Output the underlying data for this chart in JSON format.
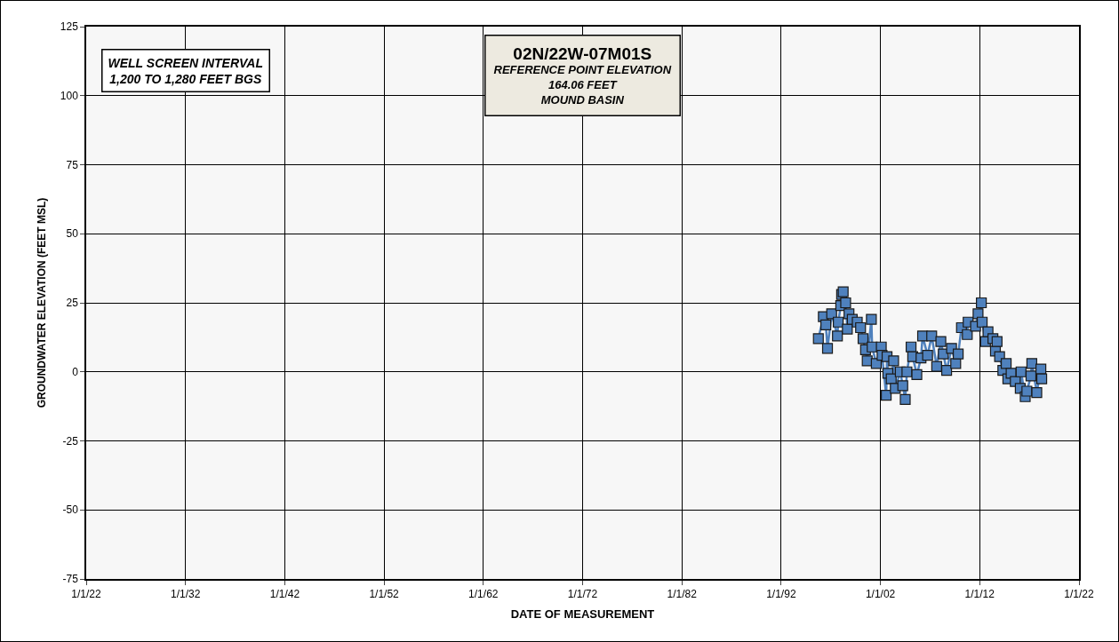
{
  "chart_data": {
    "type": "line",
    "title": "02N/22W-07M01S",
    "subtitle": "REFERENCE POINT ELEVATION\n164.06 FEET\nMOUND BASIN",
    "xlabel": "DATE OF MEASUREMENT",
    "ylabel": "GROUNDWATER ELEVATION (FEET MSL)",
    "annotations": [
      "WELL SCREEN INTERVAL\n1,200 TO 1,280 FEET BGS"
    ],
    "x": [
      "1995-10",
      "1996-04",
      "1996-07",
      "1996-09",
      "1997-02",
      "1997-09",
      "1997-10",
      "1998-01",
      "1998-02",
      "1998-04",
      "1998-07",
      "1998-09",
      "1998-11",
      "1999-03",
      "1999-09",
      "2000-01",
      "2000-04",
      "2000-07",
      "2000-09",
      "2001-02",
      "2001-03",
      "2001-08",
      "2002-02",
      "2002-03",
      "2002-08",
      "2002-09",
      "2002-10",
      "2003-02",
      "2003-05",
      "2003-07",
      "2004-01",
      "2004-04",
      "2004-07",
      "2004-09",
      "2005-02",
      "2005-04",
      "2005-09",
      "2006-02",
      "2006-04",
      "2006-10",
      "2007-03",
      "2007-09",
      "2008-02",
      "2008-05",
      "2008-09",
      "2009-03",
      "2009-08",
      "2009-11",
      "2010-03",
      "2010-10",
      "2010-11",
      "2011-08",
      "2011-11",
      "2012-03",
      "2012-04",
      "2012-08",
      "2012-11",
      "2013-05",
      "2013-08",
      "2013-10",
      "2014-01",
      "2014-05",
      "2014-09",
      "2014-11",
      "2015-03",
      "2015-08",
      "2016-02",
      "2016-03",
      "2016-08",
      "2016-10",
      "2017-03",
      "2017-04",
      "2017-10",
      "2018-03",
      "2018-04"
    ],
    "series": [
      {
        "color": "#4f81bd",
        "values": [
          12,
          20,
          17,
          8.5,
          21,
          13,
          18,
          24,
          28,
          29,
          25,
          15.5,
          21,
          19,
          18,
          16,
          12,
          8,
          4,
          19,
          9,
          3,
          9,
          6,
          -8.5,
          5.5,
          -0.5,
          -2.5,
          4,
          -6,
          0,
          -5,
          -10,
          0,
          9,
          5.5,
          -1,
          5,
          13,
          6,
          13,
          2,
          11,
          6.5,
          0.5,
          8.5,
          3,
          6.5,
          16,
          13.5,
          18,
          16.5,
          21,
          25,
          18,
          11,
          14.5,
          12,
          7.5,
          11,
          5.5,
          0.5,
          3,
          -2.5,
          -0.5,
          -3.5,
          -6,
          0,
          -9,
          -7,
          -1.5,
          3,
          -7.5,
          1,
          -2.5
        ]
      }
    ],
    "xlim": [
      "1922-01-01",
      "2022-01-01"
    ],
    "xticks": [
      {
        "value": "1922-01-01",
        "label": "1/1/22"
      },
      {
        "value": "1932-01-01",
        "label": "1/1/32"
      },
      {
        "value": "1942-01-01",
        "label": "1/1/42"
      },
      {
        "value": "1952-01-01",
        "label": "1/1/52"
      },
      {
        "value": "1962-01-01",
        "label": "1/1/62"
      },
      {
        "value": "1972-01-01",
        "label": "1/1/72"
      },
      {
        "value": "1982-01-01",
        "label": "1/1/82"
      },
      {
        "value": "1992-01-01",
        "label": "1/1/92"
      },
      {
        "value": "2002-01-01",
        "label": "1/1/02"
      },
      {
        "value": "2012-01-01",
        "label": "1/1/12"
      },
      {
        "value": "2022-01-01",
        "label": "1/1/22"
      }
    ],
    "ylim": [
      -75,
      125
    ],
    "yticks": [
      -75,
      -50,
      -25,
      0,
      25,
      50,
      75,
      100,
      125
    ],
    "grid": true,
    "marker": "square",
    "line_style": "solid"
  }
}
